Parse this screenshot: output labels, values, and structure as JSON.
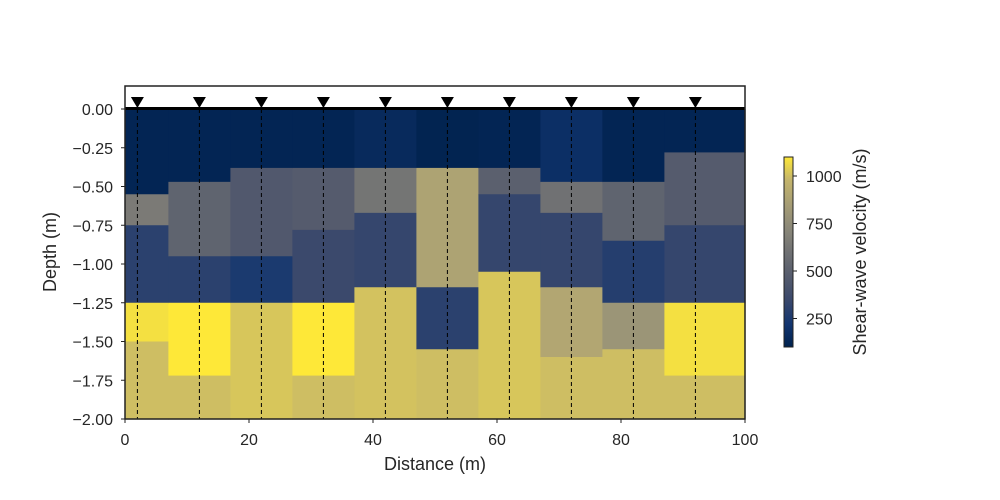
{
  "chart_data": {
    "type": "heatmap",
    "title": "",
    "xlabel": "Distance (m)",
    "ylabel": "Depth (m)",
    "xlim": [
      0,
      100
    ],
    "ylim": [
      -2.0,
      0.0
    ],
    "xticks": [
      "0",
      "20",
      "40",
      "60",
      "80",
      "100"
    ],
    "yticks": [
      "0.00",
      "−0.25",
      "−0.50",
      "−0.75",
      "−1.00",
      "−1.25",
      "−1.50",
      "−1.75",
      "−2.00"
    ],
    "colorbar": {
      "label": "Shear-wave velocity (m/s)",
      "range": [
        100,
        1100
      ],
      "ticks": [
        "250",
        "500",
        "750",
        "1000"
      ],
      "colormap": "cividis"
    },
    "receivers_x": [
      2,
      12,
      22,
      32,
      42,
      52,
      62,
      72,
      82,
      92
    ],
    "column_edges_x": [
      0,
      7,
      17,
      27,
      37,
      47,
      57,
      67,
      77,
      87,
      100
    ],
    "columns": [
      {
        "layers": [
          {
            "top": 0.0,
            "bottom": -0.55,
            "vs": 120
          },
          {
            "top": -0.55,
            "bottom": -0.75,
            "vs": 650
          },
          {
            "top": -0.75,
            "bottom": -1.25,
            "vs": 300
          },
          {
            "top": -1.25,
            "bottom": -1.5,
            "vs": 1080
          },
          {
            "top": -1.5,
            "bottom": -2.0,
            "vs": 1000
          }
        ]
      },
      {
        "layers": [
          {
            "top": 0.0,
            "bottom": -0.47,
            "vs": 120
          },
          {
            "top": -0.47,
            "bottom": -0.95,
            "vs": 520
          },
          {
            "top": -0.95,
            "bottom": -1.25,
            "vs": 300
          },
          {
            "top": -1.25,
            "bottom": -1.72,
            "vs": 1100
          },
          {
            "top": -1.72,
            "bottom": -2.0,
            "vs": 1000
          }
        ]
      },
      {
        "layers": [
          {
            "top": 0.0,
            "bottom": -0.38,
            "vs": 120
          },
          {
            "top": -0.38,
            "bottom": -0.95,
            "vs": 450
          },
          {
            "top": -0.95,
            "bottom": -1.25,
            "vs": 250
          },
          {
            "top": -1.25,
            "bottom": -2.0,
            "vs": 1020
          }
        ]
      },
      {
        "layers": [
          {
            "top": 0.0,
            "bottom": -0.38,
            "vs": 120
          },
          {
            "top": -0.38,
            "bottom": -0.78,
            "vs": 470
          },
          {
            "top": -0.78,
            "bottom": -1.25,
            "vs": 350
          },
          {
            "top": -1.25,
            "bottom": -1.72,
            "vs": 1100
          },
          {
            "top": -1.72,
            "bottom": -2.0,
            "vs": 1000
          }
        ]
      },
      {
        "layers": [
          {
            "top": 0.0,
            "bottom": -0.38,
            "vs": 150
          },
          {
            "top": -0.38,
            "bottom": -0.67,
            "vs": 620
          },
          {
            "top": -0.67,
            "bottom": -1.15,
            "vs": 330
          },
          {
            "top": -1.15,
            "bottom": -2.0,
            "vs": 1010
          }
        ]
      },
      {
        "layers": [
          {
            "top": 0.0,
            "bottom": -0.38,
            "vs": 110
          },
          {
            "top": -0.38,
            "bottom": -1.15,
            "vs": 880
          },
          {
            "top": -1.15,
            "bottom": -1.55,
            "vs": 300
          },
          {
            "top": -1.55,
            "bottom": -2.0,
            "vs": 1000
          }
        ]
      },
      {
        "layers": [
          {
            "top": 0.0,
            "bottom": -0.38,
            "vs": 120
          },
          {
            "top": -0.38,
            "bottom": -0.55,
            "vs": 500
          },
          {
            "top": -0.55,
            "bottom": -1.05,
            "vs": 330
          },
          {
            "top": -1.05,
            "bottom": -2.0,
            "vs": 1020
          }
        ]
      },
      {
        "layers": [
          {
            "top": 0.0,
            "bottom": -0.47,
            "vs": 180
          },
          {
            "top": -0.47,
            "bottom": -0.67,
            "vs": 600
          },
          {
            "top": -0.67,
            "bottom": -1.15,
            "vs": 330
          },
          {
            "top": -1.15,
            "bottom": -1.6,
            "vs": 900
          },
          {
            "top": -1.6,
            "bottom": -2.0,
            "vs": 1000
          }
        ]
      },
      {
        "layers": [
          {
            "top": 0.0,
            "bottom": -0.47,
            "vs": 120
          },
          {
            "top": -0.47,
            "bottom": -0.85,
            "vs": 520
          },
          {
            "top": -0.85,
            "bottom": -1.25,
            "vs": 280
          },
          {
            "top": -1.25,
            "bottom": -1.55,
            "vs": 800
          },
          {
            "top": -1.55,
            "bottom": -2.0,
            "vs": 1000
          }
        ]
      },
      {
        "layers": [
          {
            "top": 0.0,
            "bottom": -0.28,
            "vs": 120
          },
          {
            "top": -0.28,
            "bottom": -0.75,
            "vs": 470
          },
          {
            "top": -0.75,
            "bottom": -1.25,
            "vs": 330
          },
          {
            "top": -1.25,
            "bottom": -1.72,
            "vs": 1080
          },
          {
            "top": -1.72,
            "bottom": -2.0,
            "vs": 1000
          }
        ]
      }
    ],
    "grid": false
  }
}
